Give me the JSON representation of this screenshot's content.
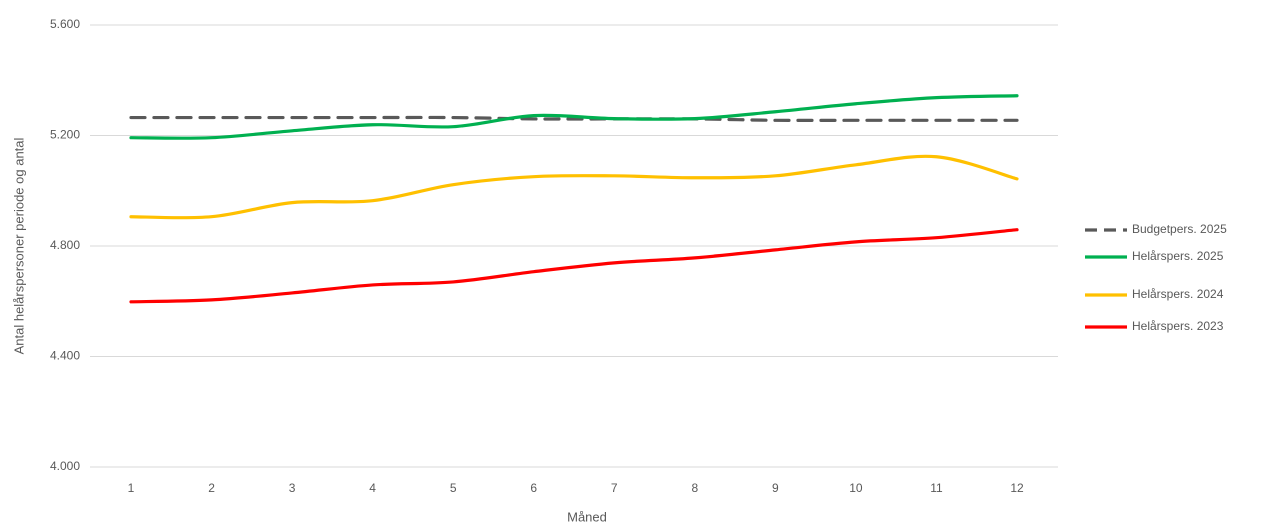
{
  "chart_data": {
    "type": "line",
    "x_label": "Måned",
    "y_label": "Antal helårspersoner periode og antal",
    "categories": [
      "1",
      "2",
      "3",
      "4",
      "5",
      "6",
      "7",
      "8",
      "9",
      "10",
      "11",
      "12"
    ],
    "series": [
      {
        "name": "Budgetpers. 2025",
        "color": "#595959",
        "dash": true,
        "values": [
          5265,
          5265,
          5265,
          5265,
          5265,
          5260,
          5260,
          5260,
          5255,
          5255,
          5255,
          5255
        ]
      },
      {
        "name": "Helårspers. 2025",
        "color": "#00b050",
        "values": [
          5192,
          5192,
          5217,
          5239,
          5232,
          5272,
          5261,
          5261,
          5286,
          5315,
          5337,
          5344
        ]
      },
      {
        "name": "Helårspers. 2024",
        "color": "#ffc000",
        "values": [
          4906,
          4906,
          4957,
          4964,
          5022,
          5051,
          5054,
          5047,
          5054,
          5094,
          5123,
          5043
        ]
      },
      {
        "name": "Helårspers. 2023",
        "color": "#ff0000",
        "values": [
          4598,
          4605,
          4630,
          4659,
          4670,
          4707,
          4739,
          4757,
          4786,
          4815,
          4830,
          4859
        ]
      }
    ],
    "ylim": [
      4000,
      5600
    ],
    "yticks": [
      {
        "value": 4000,
        "label": "4.000"
      },
      {
        "value": 4400,
        "label": "4.400"
      },
      {
        "value": 4800,
        "label": "4.800"
      },
      {
        "value": 5200,
        "label": "5.200"
      },
      {
        "value": 5600,
        "label": "5.600"
      }
    ],
    "grid": true,
    "legend": "right"
  }
}
